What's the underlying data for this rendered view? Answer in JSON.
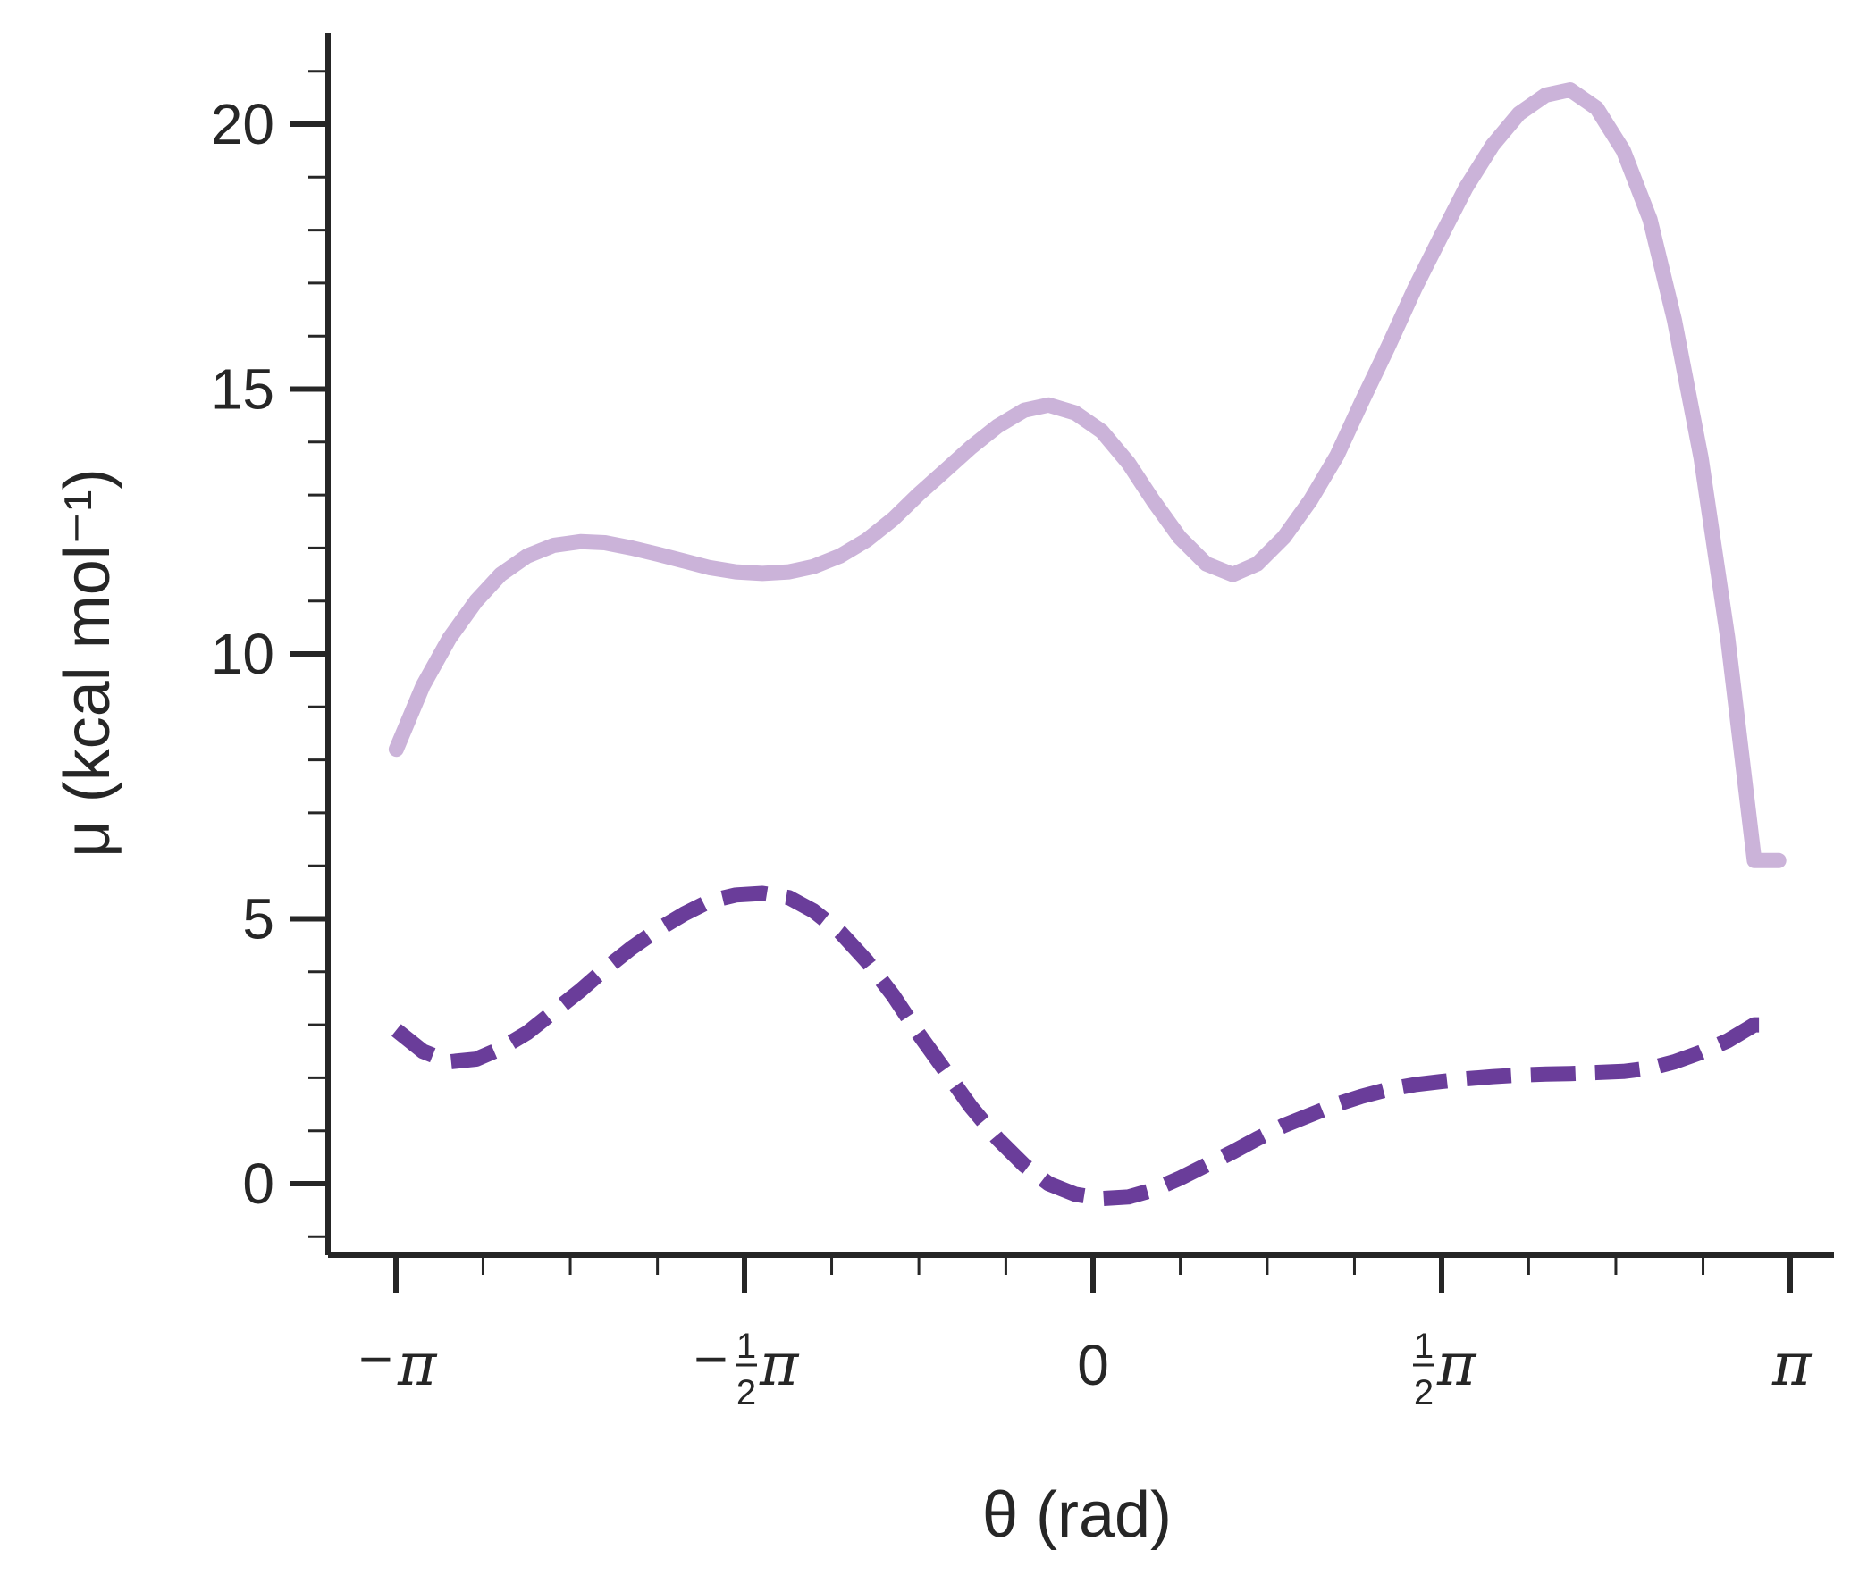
{
  "chart_data": {
    "type": "line",
    "xlabel": "θ (rad)",
    "ylabel": "μ (kcal mol⁻¹)",
    "xlim": [
      -3.2,
      3.2
    ],
    "ylim": [
      -1.3,
      21.7
    ],
    "x_ticks": [
      {
        "value": -3.14159,
        "sign": "−",
        "num": "",
        "den": "",
        "sym": "π"
      },
      {
        "value": -1.5708,
        "sign": "−",
        "num": "1",
        "den": "2",
        "sym": "π"
      },
      {
        "value": 0,
        "sign": "",
        "num": "",
        "den": "",
        "sym": "0"
      },
      {
        "value": 1.5708,
        "sign": "",
        "num": "1",
        "den": "2",
        "sym": "π"
      },
      {
        "value": 3.14159,
        "sign": "",
        "num": "",
        "den": "",
        "sym": "π"
      }
    ],
    "x_minor_ticks": [
      -2.749,
      -2.356,
      -1.963,
      -1.178,
      -0.785,
      -0.393,
      0.393,
      0.785,
      1.178,
      1.963,
      2.356,
      2.749
    ],
    "y_ticks": [
      0,
      5,
      10,
      15,
      20
    ],
    "y_tick_labels": [
      "0",
      "5",
      "10",
      "15",
      "20"
    ],
    "y_minor_ticks": [
      -1,
      1,
      2,
      3,
      4,
      6,
      7,
      8,
      9,
      11,
      12,
      13,
      14,
      16,
      17,
      18,
      19,
      21
    ],
    "series": [
      {
        "style": "solid",
        "color": "#cbb3d9",
        "x": [
          -3.14,
          -3.02,
          -2.9,
          -2.78,
          -2.67,
          -2.55,
          -2.43,
          -2.31,
          -2.2,
          -2.08,
          -1.96,
          -1.84,
          -1.73,
          -1.61,
          -1.49,
          -1.37,
          -1.26,
          -1.14,
          -1.02,
          -0.9,
          -0.79,
          -0.67,
          -0.55,
          -0.43,
          -0.31,
          -0.2,
          -0.08,
          0.04,
          0.16,
          0.27,
          0.39,
          0.51,
          0.63,
          0.74,
          0.86,
          0.98,
          1.1,
          1.21,
          1.33,
          1.45,
          1.57,
          1.68,
          1.8,
          1.92,
          2.04,
          2.15,
          2.27,
          2.39,
          2.51,
          2.62,
          2.74,
          2.86,
          2.98,
          3.09
        ],
        "y": [
          8.2,
          9.4,
          10.3,
          11.0,
          11.5,
          11.85,
          12.05,
          12.12,
          12.1,
          12.0,
          11.88,
          11.75,
          11.63,
          11.55,
          11.52,
          11.55,
          11.65,
          11.85,
          12.15,
          12.55,
          13.0,
          13.45,
          13.9,
          14.3,
          14.6,
          14.7,
          14.55,
          14.2,
          13.6,
          12.9,
          12.2,
          11.7,
          11.5,
          11.7,
          12.2,
          12.9,
          13.75,
          14.75,
          15.8,
          16.9,
          17.9,
          18.8,
          19.6,
          20.2,
          20.55,
          20.65,
          20.3,
          19.5,
          18.2,
          16.3,
          13.7,
          10.3,
          6.1,
          6.1
        ]
      },
      {
        "style": "dashed",
        "color": "#6a3d9a",
        "x": [
          -3.14,
          -3.02,
          -2.9,
          -2.78,
          -2.67,
          -2.55,
          -2.43,
          -2.31,
          -2.2,
          -2.08,
          -1.96,
          -1.84,
          -1.73,
          -1.61,
          -1.49,
          -1.37,
          -1.26,
          -1.14,
          -1.02,
          -0.9,
          -0.79,
          -0.67,
          -0.55,
          -0.43,
          -0.31,
          -0.2,
          -0.08,
          0.04,
          0.16,
          0.27,
          0.39,
          0.51,
          0.63,
          0.74,
          0.86,
          0.98,
          1.1,
          1.21,
          1.33,
          1.45,
          1.57,
          1.68,
          1.8,
          1.92,
          2.04,
          2.15,
          2.27,
          2.39,
          2.51,
          2.62,
          2.74,
          2.86,
          2.98,
          3.09
        ],
        "y": [
          2.9,
          2.5,
          2.3,
          2.35,
          2.55,
          2.85,
          3.25,
          3.65,
          4.05,
          4.45,
          4.8,
          5.1,
          5.33,
          5.45,
          5.48,
          5.4,
          5.15,
          4.75,
          4.2,
          3.55,
          2.85,
          2.15,
          1.45,
          0.85,
          0.35,
          0.0,
          -0.2,
          -0.28,
          -0.25,
          -0.12,
          0.1,
          0.35,
          0.6,
          0.85,
          1.1,
          1.3,
          1.5,
          1.65,
          1.78,
          1.87,
          1.93,
          1.98,
          2.02,
          2.05,
          2.07,
          2.08,
          2.1,
          2.12,
          2.18,
          2.3,
          2.48,
          2.7,
          3.0,
          3.0
        ]
      }
    ]
  }
}
